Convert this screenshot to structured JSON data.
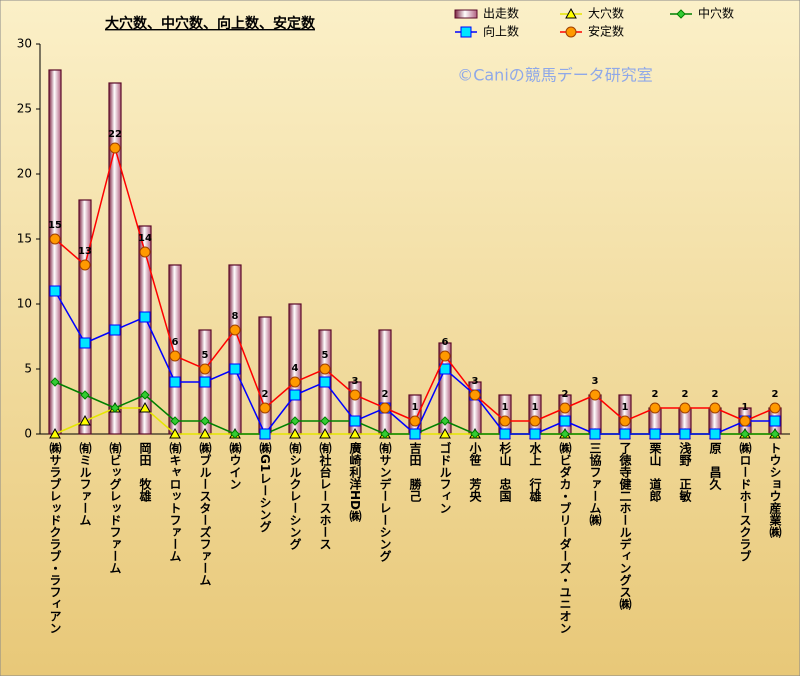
{
  "chart_data": {
    "type": "bar",
    "title": "大穴数、中穴数、向上数、安定数",
    "watermark": "©Caniの競馬データ研究室",
    "categories": [
      "㈱サラブレッドクラブ・ラフィアン",
      "㈲ミルファーム",
      "㈲ビッグレッドファーム",
      "岡田　牧雄",
      "㈲キャロットファーム",
      "㈱ブルースターズファーム",
      "㈱ウイン",
      "㈱G1レーシング",
      "㈲シルクレーシング",
      "㈲社台レースホース",
      "廣崎利洋HD㈱",
      "㈲サンデーレーシング",
      "吉田　勝己",
      "ゴドルフィン",
      "小笹　芳央",
      "杉山　忠国",
      "水上　行雄",
      "㈱ビダカ・ブリーダーズ・ユニオン",
      "三協ファーム㈱",
      "了徳寺健二ホールディングス㈱",
      "栗山　道郎",
      "浅野　正敏",
      "原　昌久",
      "㈱ロードホースクラブ",
      "トウショウ産業㈱"
    ],
    "series": [
      {
        "name": "出走数",
        "type": "bar",
        "color": "#5a0a28",
        "values": [
          28,
          18,
          27,
          16,
          13,
          8,
          13,
          9,
          10,
          8,
          4,
          8,
          3,
          7,
          4,
          3,
          3,
          3,
          3,
          3,
          2,
          2,
          2,
          2,
          2
        ]
      },
      {
        "name": "大穴数",
        "type": "line",
        "marker": "triangle",
        "color": "#e6e600",
        "marker_color": "#ffff00",
        "values": [
          0,
          1,
          2,
          2,
          0,
          0,
          0,
          0,
          0,
          0,
          0,
          0,
          0,
          0,
          0,
          0,
          0,
          0,
          0,
          0,
          0,
          0,
          0,
          0,
          0
        ]
      },
      {
        "name": "中穴数",
        "type": "line",
        "marker": "diamond",
        "color": "#008000",
        "marker_color": "#33cc33",
        "values": [
          4,
          3,
          2,
          3,
          1,
          1,
          0,
          0,
          1,
          1,
          1,
          0,
          0,
          1,
          0,
          0,
          0,
          0,
          0,
          0,
          0,
          0,
          0,
          0,
          0
        ]
      },
      {
        "name": "向上数",
        "type": "line",
        "marker": "square",
        "color": "#0000ff",
        "marker_color": "#00e5ff",
        "values": [
          11,
          7,
          8,
          9,
          4,
          4,
          5,
          0,
          3,
          4,
          1,
          2,
          0,
          5,
          3,
          0,
          0,
          1,
          0,
          0,
          0,
          0,
          0,
          1,
          1
        ]
      },
      {
        "name": "安定数",
        "type": "line",
        "marker": "circle",
        "color": "#ff0000",
        "marker_color": "#ff9900",
        "labels": true,
        "values": [
          15,
          13,
          22,
          14,
          6,
          5,
          8,
          2,
          4,
          5,
          3,
          2,
          1,
          6,
          3,
          1,
          1,
          2,
          3,
          1,
          2,
          2,
          2,
          1,
          2
        ]
      }
    ],
    "ylim": [
      0,
      30
    ],
    "yticks": [
      0,
      5,
      10,
      15,
      20,
      25,
      30
    ],
    "grid": false
  }
}
